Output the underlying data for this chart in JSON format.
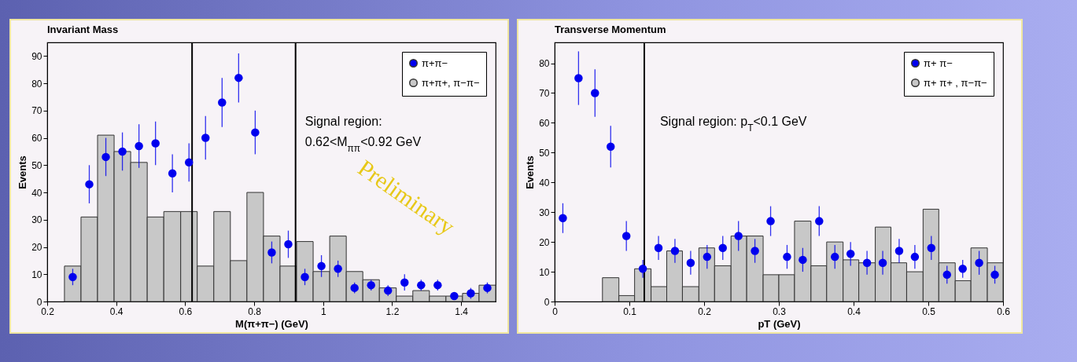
{
  "chart_data": [
    {
      "type": "histogram",
      "title": "Invariant Mass",
      "xlabel": "M(π+π−) (GeV)",
      "ylabel": "Events",
      "xlim": [
        0.2,
        1.5
      ],
      "xticks": [
        0.2,
        0.4,
        0.6,
        0.8,
        1,
        1.2,
        1.4
      ],
      "ylim": [
        0,
        95
      ],
      "yticks": [
        0,
        10,
        20,
        30,
        40,
        50,
        60,
        70,
        80,
        90
      ],
      "legend": "top right",
      "marker": "circle",
      "series": [
        {
          "type": "scatter",
          "name": "π+π−",
          "color": "#0000ee",
          "x": [
            0.274,
            0.322,
            0.37,
            0.418,
            0.466,
            0.514,
            0.563,
            0.611,
            0.659,
            0.707,
            0.755,
            0.803,
            0.851,
            0.899,
            0.947,
            0.995,
            1.043,
            1.091,
            1.139,
            1.188,
            1.236,
            1.284,
            1.332,
            1.38,
            1.428,
            1.476
          ],
          "values": [
            9,
            43,
            53,
            55,
            57,
            58,
            47,
            51,
            60,
            73,
            82,
            62,
            18,
            21,
            9,
            13,
            12,
            5,
            6,
            4,
            7,
            6,
            6,
            2,
            3,
            5
          ],
          "errors": [
            3,
            7,
            7,
            7,
            8,
            8,
            7,
            7,
            8,
            9,
            9,
            8,
            4,
            5,
            3,
            4,
            3,
            2,
            2,
            2,
            3,
            2,
            2,
            1,
            2,
            2
          ]
        },
        {
          "type": "histogram",
          "name": "π+π+, π−π−",
          "color": "#c8c8c8",
          "bins": [
            0.25,
            0.298,
            0.346,
            0.394,
            0.442,
            0.49,
            0.538,
            0.587,
            0.635,
            0.683,
            0.731,
            0.779,
            0.827,
            0.875,
            0.923,
            0.971,
            1.019,
            1.067,
            1.115,
            1.163,
            1.212,
            1.26,
            1.308,
            1.356,
            1.404,
            1.452,
            1.5
          ],
          "values": [
            13,
            31,
            61,
            55,
            51,
            31,
            33,
            33,
            13,
            33,
            15,
            40,
            24,
            13,
            22,
            11,
            24,
            11,
            8,
            5,
            2,
            4,
            2,
            2,
            3,
            6
          ]
        }
      ],
      "ref_lines": [
        {
          "axis": "x",
          "value": 0.62,
          "color": "#000000"
        },
        {
          "axis": "x",
          "value": 0.92,
          "color": "#000000"
        }
      ],
      "annotations": [
        "Signal region:",
        "0.62<M$_{ππ}$<0.92 GeV",
        "Preliminary"
      ]
    },
    {
      "type": "histogram",
      "title": "Transverse Momentum",
      "xlabel": "pT (GeV)",
      "ylabel": "Events",
      "xlim": [
        0,
        0.6
      ],
      "xticks": [
        0,
        0.1,
        0.2,
        0.3,
        0.4,
        0.5,
        0.6
      ],
      "ylim": [
        0,
        87
      ],
      "yticks": [
        0,
        10,
        20,
        30,
        40,
        50,
        60,
        70,
        80
      ],
      "legend": "top right",
      "marker": "circle",
      "series": [
        {
          "type": "scatter",
          "name": "π+ π−",
          "color": "#0000ee",
          "x": [
            0.011,
            0.032,
            0.054,
            0.075,
            0.096,
            0.118,
            0.139,
            0.161,
            0.182,
            0.204,
            0.225,
            0.246,
            0.268,
            0.289,
            0.311,
            0.332,
            0.354,
            0.375,
            0.396,
            0.418,
            0.439,
            0.461,
            0.482,
            0.504,
            0.525,
            0.546,
            0.568,
            0.589
          ],
          "values": [
            28,
            75,
            70,
            52,
            22,
            11,
            18,
            17,
            13,
            15,
            18,
            22,
            17,
            27,
            15,
            14,
            27,
            15,
            16,
            13,
            13,
            17,
            15,
            18,
            9,
            11,
            13,
            9
          ],
          "errors": [
            5,
            9,
            8,
            7,
            5,
            3,
            4,
            4,
            4,
            4,
            4,
            5,
            4,
            5,
            4,
            4,
            5,
            4,
            4,
            4,
            4,
            4,
            4,
            4,
            3,
            3,
            4,
            3
          ]
        },
        {
          "type": "histogram",
          "name": "π+ π+ , π−π−",
          "color": "#c8c8c8",
          "bins": [
            0.064,
            0.086,
            0.107,
            0.129,
            0.15,
            0.171,
            0.193,
            0.214,
            0.236,
            0.257,
            0.279,
            0.3,
            0.321,
            0.343,
            0.364,
            0.386,
            0.407,
            0.429,
            0.45,
            0.471,
            0.493,
            0.514,
            0.536,
            0.557,
            0.579,
            0.6
          ],
          "values": [
            8,
            2,
            11,
            5,
            17,
            5,
            18,
            12,
            22,
            22,
            9,
            9,
            27,
            12,
            20,
            14,
            13,
            25,
            13,
            10,
            31,
            13,
            7,
            18,
            13
          ]
        }
      ],
      "ref_lines": [
        {
          "axis": "x",
          "value": 0.12,
          "color": "#000000"
        }
      ],
      "annotations": [
        "Signal region: p$_{T}$<0.1 GeV"
      ]
    }
  ]
}
